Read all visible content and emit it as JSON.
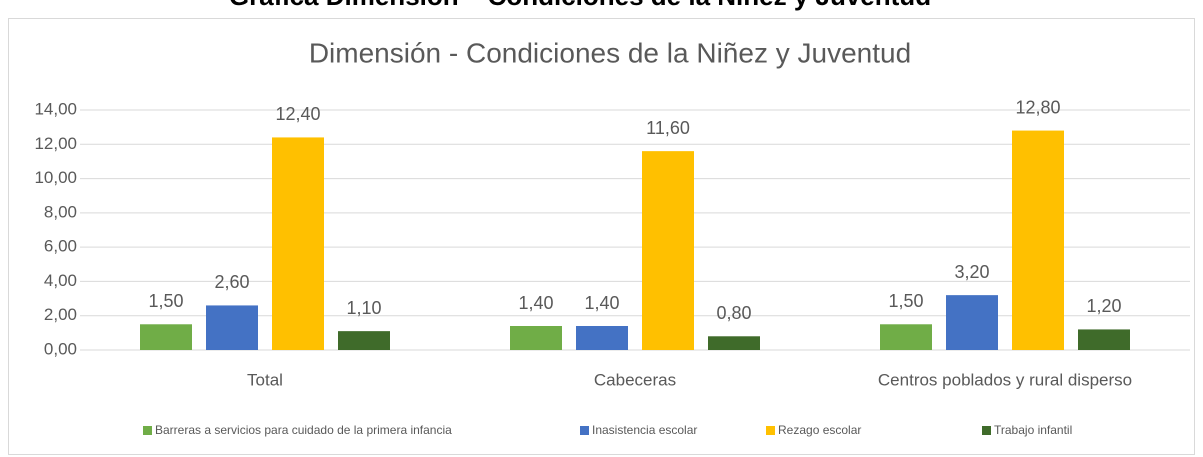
{
  "heading": "Gráfica Dimensión – Condiciones de la Niñez y Juventud",
  "chart_data": {
    "type": "bar",
    "title": "Dimensión - Condiciones de la Niñez y Juventud",
    "categories": [
      "Total",
      "Cabeceras",
      "Centros poblados y rural disperso"
    ],
    "series": [
      {
        "name": "Barreras a servicios para cuidado de la primera infancia",
        "color": "#70ad47",
        "values": [
          1.5,
          1.4,
          1.5
        ],
        "value_labels": [
          "1,50",
          "1,40",
          "1,50"
        ]
      },
      {
        "name": "Inasistencia escolar",
        "color": "#4472c4",
        "values": [
          2.6,
          1.4,
          3.2
        ],
        "value_labels": [
          "2,60",
          "1,40",
          "3,20"
        ]
      },
      {
        "name": "Rezago escolar",
        "color": "#ffc000",
        "values": [
          12.4,
          11.6,
          12.8
        ],
        "value_labels": [
          "12,40",
          "11,60",
          "12,80"
        ]
      },
      {
        "name": "Trabajo infantil",
        "color": "#3f6b2a",
        "values": [
          1.1,
          0.8,
          1.2
        ],
        "value_labels": [
          "1,10",
          "0,80",
          "1,20"
        ]
      }
    ],
    "ylim": [
      0,
      14
    ],
    "yticks": [
      {
        "value": 0,
        "label": "0,00"
      },
      {
        "value": 2,
        "label": "2,00"
      },
      {
        "value": 4,
        "label": "4,00"
      },
      {
        "value": 6,
        "label": "6,00"
      },
      {
        "value": 8,
        "label": "8,00"
      },
      {
        "value": 10,
        "label": "10,00"
      },
      {
        "value": 12,
        "label": "12,00"
      },
      {
        "value": 14,
        "label": "14,00"
      }
    ],
    "grid": true,
    "legend": "bottom"
  }
}
